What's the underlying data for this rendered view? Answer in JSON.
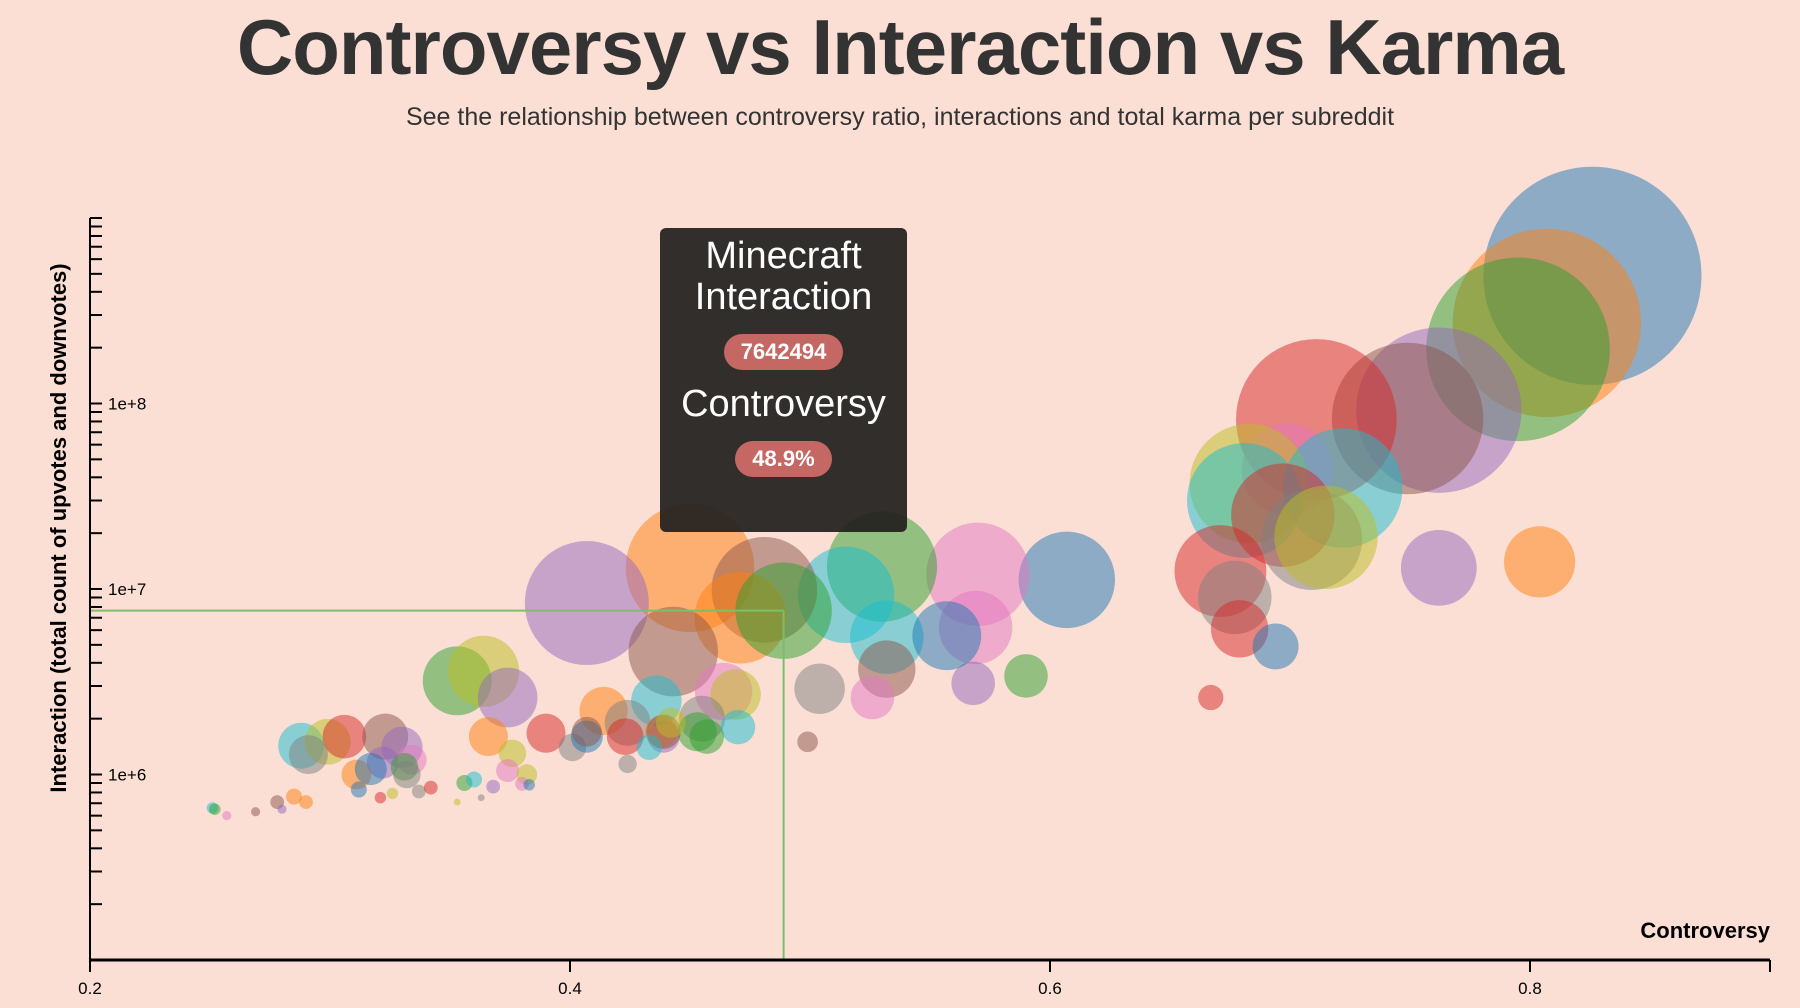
{
  "header": {
    "title": "Controversy vs Interaction vs Karma",
    "subtitle": "See the relationship between controversy ratio, interactions and total karma per subreddit"
  },
  "tooltip": {
    "name": "Minecraft",
    "interaction_label": "Interaction",
    "interaction_value": "7642494",
    "controversy_label": "Controversy",
    "controversy_value": "48.9%"
  },
  "colors": {
    "background": "#fbdfd4",
    "crosshair": "#7cbf6a",
    "badge": "#c56762",
    "palette": {
      "blue": "#1f77b4",
      "orange": "#ff7f0e",
      "green": "#2ca02c",
      "red": "#d62728",
      "purple": "#9467bd",
      "brown": "#8c564b",
      "pink": "#e377c2",
      "gray": "#7f7f7f",
      "olive": "#bcbd22",
      "cyan": "#17becf"
    }
  },
  "chart_data": {
    "type": "scatter",
    "title": "Controversy vs Interaction vs Karma",
    "xlabel": "Controversy",
    "ylabel": "Interaction (total count of upvotes and downvotes)",
    "xlim": [
      0.2,
      0.9
    ],
    "ylim": [
      100000,
      1000000000
    ],
    "yscale": "log",
    "x_ticks": [
      "0.2",
      "0.4",
      "0.6",
      "0.8"
    ],
    "x_tick_values": [
      0.2,
      0.4,
      0.6,
      0.8
    ],
    "y_ticks": [
      "1e+6",
      "1e+7",
      "1e+8"
    ],
    "y_tick_values": [
      1000000,
      10000000,
      100000000
    ],
    "size_encoding": "total karma (relative)",
    "highlight": {
      "name": "Minecraft",
      "x": 0.489,
      "y": 7642494
    },
    "points": [
      {
        "x": 0.826,
        "y": 488000000,
        "karma": 9025,
        "color": "blue"
      },
      {
        "x": 0.807,
        "y": 272000000,
        "karma": 6724,
        "color": "orange"
      },
      {
        "x": 0.795,
        "y": 196000000,
        "karma": 6400,
        "color": "green"
      },
      {
        "x": 0.762,
        "y": 92000000,
        "karma": 5184,
        "color": "purple"
      },
      {
        "x": 0.749,
        "y": 83000000,
        "karma": 4356,
        "color": "brown"
      },
      {
        "x": 0.711,
        "y": 82000000,
        "karma": 4900,
        "color": "red"
      },
      {
        "x": 0.699,
        "y": 44000000,
        "karma": 1600,
        "color": "pink"
      },
      {
        "x": 0.683,
        "y": 37000000,
        "karma": 2704,
        "color": "olive"
      },
      {
        "x": 0.722,
        "y": 35000000,
        "karma": 2704,
        "color": "cyan"
      },
      {
        "x": 0.681,
        "y": 30000000,
        "karma": 2500,
        "color": "cyan"
      },
      {
        "x": 0.697,
        "y": 25000000,
        "karma": 2025,
        "color": "red"
      },
      {
        "x": 0.709,
        "y": 18500000,
        "karma": 1936,
        "color": "gray"
      },
      {
        "x": 0.715,
        "y": 19000000,
        "karma": 2025,
        "color": "olive"
      },
      {
        "x": 0.762,
        "y": 13000000,
        "karma": 1089,
        "color": "purple"
      },
      {
        "x": 0.804,
        "y": 14000000,
        "karma": 961,
        "color": "orange"
      },
      {
        "x": 0.671,
        "y": 12500000,
        "karma": 1600,
        "color": "red"
      },
      {
        "x": 0.677,
        "y": 9000000,
        "karma": 1024,
        "color": "gray"
      },
      {
        "x": 0.679,
        "y": 6100000,
        "karma": 625,
        "color": "red"
      },
      {
        "x": 0.694,
        "y": 4900000,
        "karma": 400,
        "color": "blue"
      },
      {
        "x": 0.667,
        "y": 2600000,
        "karma": 121,
        "color": "red"
      },
      {
        "x": 0.607,
        "y": 11200000,
        "karma": 1764,
        "color": "blue"
      },
      {
        "x": 0.57,
        "y": 12000000,
        "karma": 2025,
        "color": "pink"
      },
      {
        "x": 0.569,
        "y": 6200000,
        "karma": 1024,
        "color": "pink"
      },
      {
        "x": 0.568,
        "y": 3100000,
        "karma": 361,
        "color": "purple"
      },
      {
        "x": 0.59,
        "y": 3400000,
        "karma": 361,
        "color": "green"
      },
      {
        "x": 0.53,
        "y": 13200000,
        "karma": 2304,
        "color": "green"
      },
      {
        "x": 0.515,
        "y": 9300000,
        "karma": 1764,
        "color": "cyan"
      },
      {
        "x": 0.532,
        "y": 5500000,
        "karma": 1024,
        "color": "cyan"
      },
      {
        "x": 0.557,
        "y": 5600000,
        "karma": 900,
        "color": "blue"
      },
      {
        "x": 0.532,
        "y": 3700000,
        "karma": 625,
        "color": "brown"
      },
      {
        "x": 0.526,
        "y": 2600000,
        "karma": 361,
        "color": "pink"
      },
      {
        "x": 0.504,
        "y": 2900000,
        "karma": 484,
        "color": "gray"
      },
      {
        "x": 0.499,
        "y": 1500000,
        "karma": 81,
        "color": "brown"
      },
      {
        "x": 0.45,
        "y": 13000000,
        "karma": 3136,
        "color": "orange"
      },
      {
        "x": 0.481,
        "y": 9900000,
        "karma": 2116,
        "color": "brown"
      },
      {
        "x": 0.471,
        "y": 7000000,
        "karma": 1600,
        "color": "orange"
      },
      {
        "x": 0.489,
        "y": 7642494,
        "karma": 1764,
        "color": "green"
      },
      {
        "x": 0.407,
        "y": 8400000,
        "karma": 2916,
        "color": "purple"
      },
      {
        "x": 0.443,
        "y": 4600000,
        "karma": 1521,
        "color": "brown"
      },
      {
        "x": 0.464,
        "y": 2800000,
        "karma": 625,
        "color": "pink"
      },
      {
        "x": 0.469,
        "y": 2700000,
        "karma": 484,
        "color": "olive"
      },
      {
        "x": 0.436,
        "y": 2500000,
        "karma": 484,
        "color": "cyan"
      },
      {
        "x": 0.455,
        "y": 2000000,
        "karma": 400,
        "color": "gray"
      },
      {
        "x": 0.453,
        "y": 1700000,
        "karma": 289,
        "color": "green"
      },
      {
        "x": 0.47,
        "y": 1800000,
        "karma": 225,
        "color": "cyan"
      },
      {
        "x": 0.457,
        "y": 1600000,
        "karma": 225,
        "color": "green"
      },
      {
        "x": 0.414,
        "y": 2200000,
        "karma": 441,
        "color": "orange"
      },
      {
        "x": 0.439,
        "y": 1600000,
        "karma": 196,
        "color": "purple"
      },
      {
        "x": 0.424,
        "y": 1900000,
        "karma": 400,
        "color": "gray"
      },
      {
        "x": 0.423,
        "y": 1600000,
        "karma": 256,
        "color": "red"
      },
      {
        "x": 0.438,
        "y": 1700000,
        "karma": 196,
        "color": "orange"
      },
      {
        "x": 0.439,
        "y": 1700000,
        "karma": 225,
        "color": "brown"
      },
      {
        "x": 0.433,
        "y": 1400000,
        "karma": 121,
        "color": "cyan"
      },
      {
        "x": 0.442,
        "y": 1900000,
        "karma": 169,
        "color": "olive"
      },
      {
        "x": 0.424,
        "y": 1140000,
        "karma": 64,
        "color": "gray"
      },
      {
        "x": 0.39,
        "y": 1670000,
        "karma": 289,
        "color": "red"
      },
      {
        "x": 0.401,
        "y": 1400000,
        "karma": 144,
        "color": "gray"
      },
      {
        "x": 0.407,
        "y": 1600000,
        "karma": 196,
        "color": "blue"
      },
      {
        "x": 0.407,
        "y": 1700000,
        "karma": 169,
        "color": "brown"
      },
      {
        "x": 0.353,
        "y": 3200000,
        "karma": 900,
        "color": "green"
      },
      {
        "x": 0.364,
        "y": 3600000,
        "karma": 961,
        "color": "olive"
      },
      {
        "x": 0.374,
        "y": 2600000,
        "karma": 676,
        "color": "purple"
      },
      {
        "x": 0.366,
        "y": 1600000,
        "karma": 289,
        "color": "orange"
      },
      {
        "x": 0.376,
        "y": 1300000,
        "karma": 144,
        "color": "olive"
      },
      {
        "x": 0.374,
        "y": 1050000,
        "karma": 100,
        "color": "pink"
      },
      {
        "x": 0.382,
        "y": 1000000,
        "karma": 81,
        "color": "olive"
      },
      {
        "x": 0.288,
        "y": 1430000,
        "karma": 400,
        "color": "cyan"
      },
      {
        "x": 0.299,
        "y": 1500000,
        "karma": 400,
        "color": "olive"
      },
      {
        "x": 0.306,
        "y": 1600000,
        "karma": 361,
        "color": "red"
      },
      {
        "x": 0.291,
        "y": 1280000,
        "karma": 289,
        "color": "gray"
      },
      {
        "x": 0.323,
        "y": 1600000,
        "karma": 400,
        "color": "brown"
      },
      {
        "x": 0.33,
        "y": 1400000,
        "karma": 324,
        "color": "purple"
      },
      {
        "x": 0.322,
        "y": 1160000,
        "karma": 196,
        "color": "purple"
      },
      {
        "x": 0.334,
        "y": 1200000,
        "karma": 169,
        "color": "pink"
      },
      {
        "x": 0.311,
        "y": 1000000,
        "karma": 169,
        "color": "orange"
      },
      {
        "x": 0.317,
        "y": 1070000,
        "karma": 196,
        "color": "blue"
      },
      {
        "x": 0.331,
        "y": 1100000,
        "karma": 144,
        "color": "green"
      },
      {
        "x": 0.332,
        "y": 1000000,
        "karma": 144,
        "color": "gray"
      },
      {
        "x": 0.312,
        "y": 830000,
        "karma": 49,
        "color": "blue"
      },
      {
        "x": 0.321,
        "y": 750000,
        "karma": 25,
        "color": "red"
      },
      {
        "x": 0.326,
        "y": 790000,
        "karma": 25,
        "color": "olive"
      },
      {
        "x": 0.337,
        "y": 810000,
        "karma": 36,
        "color": "gray"
      },
      {
        "x": 0.342,
        "y": 850000,
        "karma": 36,
        "color": "red"
      },
      {
        "x": 0.356,
        "y": 900000,
        "karma": 49,
        "color": "green"
      },
      {
        "x": 0.36,
        "y": 940000,
        "karma": 49,
        "color": "cyan"
      },
      {
        "x": 0.353,
        "y": 710000,
        "karma": 9,
        "color": "olive"
      },
      {
        "x": 0.363,
        "y": 750000,
        "karma": 9,
        "color": "gray"
      },
      {
        "x": 0.368,
        "y": 860000,
        "karma": 36,
        "color": "purple"
      },
      {
        "x": 0.38,
        "y": 890000,
        "karma": 36,
        "color": "pink"
      },
      {
        "x": 0.383,
        "y": 880000,
        "karma": 25,
        "color": "blue"
      },
      {
        "x": 0.251,
        "y": 660000,
        "karma": 25,
        "color": "cyan"
      },
      {
        "x": 0.252,
        "y": 650000,
        "karma": 25,
        "color": "green"
      },
      {
        "x": 0.257,
        "y": 600000,
        "karma": 16,
        "color": "pink"
      },
      {
        "x": 0.269,
        "y": 630000,
        "karma": 16,
        "color": "brown"
      },
      {
        "x": 0.278,
        "y": 710000,
        "karma": 36,
        "color": "brown"
      },
      {
        "x": 0.28,
        "y": 650000,
        "karma": 16,
        "color": "purple"
      },
      {
        "x": 0.285,
        "y": 760000,
        "karma": 49,
        "color": "orange"
      },
      {
        "x": 0.29,
        "y": 710000,
        "karma": 36,
        "color": "orange"
      }
    ]
  }
}
